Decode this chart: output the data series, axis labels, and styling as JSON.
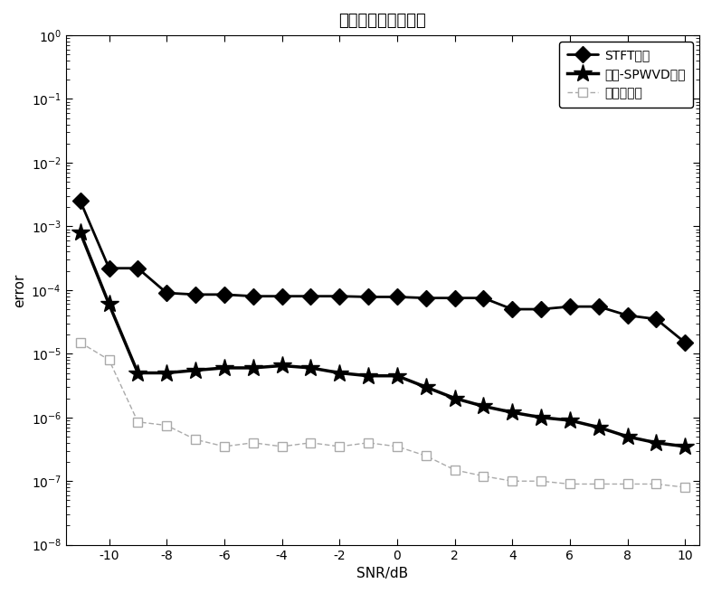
{
  "title": "跳周期估计均方误差",
  "xlabel": "SNR/dB",
  "ylabel": "error",
  "xlim": [
    -11.5,
    10.5
  ],
  "ylim_log": [
    -8,
    0
  ],
  "snr": [
    -11,
    -10,
    -9,
    -8,
    -7,
    -6,
    -5,
    -4,
    -3,
    -2,
    -1,
    0,
    1,
    2,
    3,
    4,
    5,
    6,
    7,
    8,
    9,
    10
  ],
  "stft": [
    0.0025,
    0.00022,
    0.00022,
    9e-05,
    8.5e-05,
    8.5e-05,
    8e-05,
    8e-05,
    8e-05,
    8e-05,
    7.8e-05,
    7.8e-05,
    7.5e-05,
    7.5e-05,
    7.5e-05,
    5e-05,
    5e-05,
    5.5e-05,
    5.5e-05,
    4e-05,
    3.5e-05,
    1.5e-05
  ],
  "spwvd": [
    0.0008,
    6e-05,
    5e-06,
    5e-06,
    5.5e-06,
    6e-06,
    6e-06,
    6.5e-06,
    6e-06,
    5e-06,
    4.5e-06,
    4.5e-06,
    3e-06,
    2e-06,
    1.5e-06,
    1.2e-06,
    1e-06,
    9e-07,
    7e-07,
    5e-07,
    4e-07,
    3.5e-07
  ],
  "proposed": [
    1.5e-05,
    8e-06,
    8.5e-07,
    7.5e-07,
    4.5e-07,
    3.5e-07,
    4e-07,
    3.5e-07,
    4e-07,
    3.5e-07,
    4e-07,
    3.5e-07,
    2.5e-07,
    1.5e-07,
    1.2e-07,
    1e-07,
    1e-07,
    9e-08,
    9e-08,
    9e-08,
    9e-08,
    8e-08
  ],
  "legend1": "STFT算法",
  "legend2": "谱图-SPWVD算法",
  "legend3": "本发明算法",
  "line_color": "#000000",
  "proposed_color": "#aaaaaa",
  "background_color": "#ffffff",
  "title_fontsize": 13,
  "label_fontsize": 11,
  "tick_fontsize": 10,
  "legend_fontsize": 10
}
